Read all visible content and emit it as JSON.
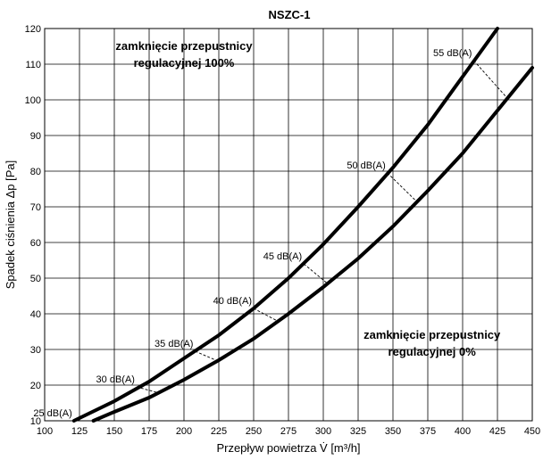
{
  "chart_data": {
    "type": "line",
    "title": "NSZC-1",
    "xlabel": "Przepływ powietrza V̇ [m³/h]",
    "ylabel": "Spadek ciśnienia Δp [Pa]",
    "xlim": [
      100,
      450
    ],
    "ylim": [
      10,
      120
    ],
    "x_ticks": [
      100,
      125,
      150,
      175,
      200,
      225,
      250,
      275,
      300,
      325,
      350,
      375,
      400,
      425,
      450
    ],
    "y_ticks": [
      10,
      20,
      30,
      40,
      50,
      60,
      70,
      80,
      90,
      100,
      110,
      120
    ],
    "grid": true,
    "series": [
      {
        "name": "zamknięcie przepustnicy regulacyjnej 100%",
        "x": [
          121,
          150,
          175,
          200,
          225,
          250,
          275,
          300,
          325,
          350,
          375,
          400,
          425
        ],
        "y": [
          10,
          15.5,
          21,
          27.5,
          34,
          41.5,
          50,
          59.5,
          70,
          81,
          93,
          106.5,
          120
        ]
      },
      {
        "name": "zamknięcie przepustnicy regulacyjnej 0%",
        "x": [
          135,
          150,
          175,
          200,
          225,
          250,
          275,
          300,
          325,
          350,
          375,
          400,
          425,
          450
        ],
        "y": [
          10,
          12.5,
          16.5,
          21.5,
          27,
          33,
          40,
          47.5,
          55.5,
          64.5,
          74.5,
          85,
          97,
          109
        ]
      }
    ],
    "sound_lines": [
      {
        "label": "25 dB(A)",
        "x1": 121,
        "y1": 10,
        "x2": 135,
        "y2": 10
      },
      {
        "label": "30 dB(A)",
        "x1": 166,
        "y1": 19.5,
        "x2": 182,
        "y2": 17.8
      },
      {
        "label": "35 dB(A)",
        "x1": 208,
        "y1": 29.5,
        "x2": 224,
        "y2": 26.8
      },
      {
        "label": "40 dB(A)",
        "x1": 250,
        "y1": 41.5,
        "x2": 268,
        "y2": 37.8
      },
      {
        "label": "45 dB(A)",
        "x1": 286,
        "y1": 54,
        "x2": 303,
        "y2": 48.5
      },
      {
        "label": "50 dB(A)",
        "x1": 346,
        "y1": 79.5,
        "x2": 367,
        "y2": 71.5
      },
      {
        "label": "55 dB(A)",
        "x1": 408,
        "y1": 111,
        "x2": 432,
        "y2": 100.5
      }
    ],
    "annotations": [
      {
        "text": [
          "zamknięcie przepustnicy",
          "regulacyjnej 100%"
        ],
        "x": 200,
        "y": 114
      },
      {
        "text": [
          "zamknięcie przepustnicy",
          "regulacyjnej 0%"
        ],
        "x": 378,
        "y": 33
      }
    ]
  }
}
